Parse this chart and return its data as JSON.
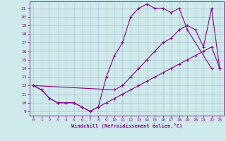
{
  "background_color": "#ceeaeb",
  "line_color": "#880088",
  "grid_color": "#aabbcc",
  "xlabel": "Windchill (Refroidissement éolien,°C)",
  "xlim": [
    -0.5,
    23.5
  ],
  "ylim": [
    8.5,
    21.8
  ],
  "yticks": [
    9,
    10,
    11,
    12,
    13,
    14,
    15,
    16,
    17,
    18,
    19,
    20,
    21
  ],
  "xticks": [
    0,
    1,
    2,
    3,
    4,
    5,
    6,
    7,
    8,
    9,
    10,
    11,
    12,
    13,
    14,
    15,
    16,
    17,
    18,
    19,
    20,
    21,
    22,
    23
  ],
  "line1_x": [
    0,
    1,
    2,
    3,
    4,
    5,
    6,
    7,
    8,
    9,
    10,
    11,
    12,
    13,
    14,
    15,
    16,
    17,
    18,
    19,
    22
  ],
  "line1_y": [
    12.0,
    11.5,
    10.5,
    10.0,
    10.0,
    10.0,
    9.5,
    9.0,
    9.5,
    13.0,
    15.5,
    17.0,
    20.0,
    21.0,
    21.5,
    21.0,
    21.0,
    20.5,
    21.0,
    18.5,
    14.0
  ],
  "line2_x": [
    0,
    1,
    2,
    3,
    4,
    5,
    6,
    7,
    8,
    9,
    10,
    11,
    12,
    13,
    14,
    15,
    16,
    17,
    18,
    19,
    20,
    21,
    22,
    23
  ],
  "line2_y": [
    12.0,
    11.5,
    10.5,
    10.0,
    10.0,
    10.0,
    9.5,
    9.0,
    9.5,
    10.0,
    10.5,
    11.0,
    11.5,
    12.0,
    12.5,
    13.0,
    13.5,
    14.0,
    14.5,
    15.0,
    15.5,
    16.0,
    16.5,
    14.0
  ],
  "line3_x": [
    0,
    10,
    11,
    12,
    13,
    14,
    15,
    16,
    17,
    18,
    19,
    20,
    21,
    22,
    23
  ],
  "line3_y": [
    12.0,
    11.5,
    12.0,
    13.0,
    14.0,
    15.0,
    16.0,
    17.0,
    17.5,
    18.5,
    19.0,
    18.5,
    16.5,
    21.0,
    14.0
  ],
  "marker": "+",
  "markersize": 3,
  "linewidth": 0.8
}
